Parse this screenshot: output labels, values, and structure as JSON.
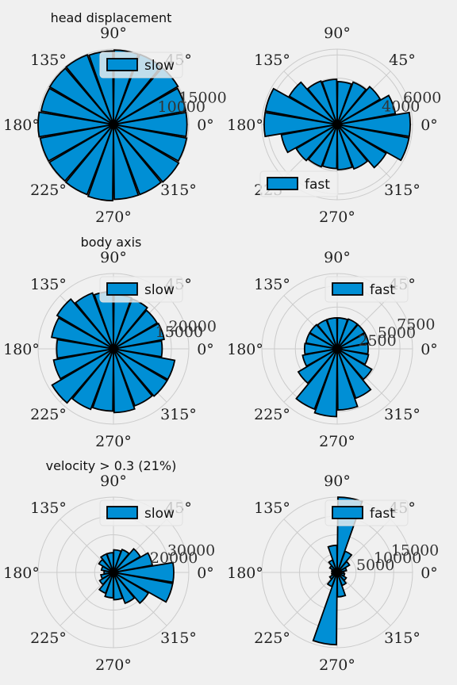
{
  "figure": {
    "background": "#f0f0f0"
  },
  "style": {
    "bar_fill": "#008fd5",
    "bar_edge": "#000000",
    "grid_color": "#cbcbcb",
    "legend_bg": "#f0f0f0"
  },
  "chart_data": [
    {
      "type": "polar-bar",
      "title": "head displacement",
      "legend": {
        "label": "slow",
        "placement": "top-center"
      },
      "angle_ticks": [
        "0°",
        "45°",
        "90°",
        "135°",
        "180°",
        "225°",
        "270°",
        "315°"
      ],
      "radial_ticks": [
        {
          "value": 5000,
          "label": ""
        },
        {
          "value": 10000,
          "label": "10000"
        },
        {
          "value": 15000,
          "label": "15000"
        }
      ],
      "rmax": 16400,
      "bins_deg": [
        0,
        20,
        40,
        60,
        80,
        100,
        120,
        140,
        160,
        180,
        200,
        220,
        240,
        260,
        280,
        300,
        320,
        340
      ],
      "values": [
        16000,
        16000,
        16300,
        16300,
        16200,
        16000,
        16200,
        16100,
        16000,
        16400,
        16200,
        16200,
        16300,
        16600,
        16300,
        16300,
        16500,
        16200
      ]
    },
    {
      "type": "polar-bar",
      "title": "",
      "legend": {
        "label": "fast",
        "placement": "bottom-left"
      },
      "angle_ticks": [
        "0°",
        "45°",
        "90°",
        "135°",
        "180°",
        "225°",
        "270°",
        "315°"
      ],
      "radial_ticks": [
        {
          "value": 2000,
          "label": ""
        },
        {
          "value": 4000,
          "label": "4000"
        },
        {
          "value": 6000,
          "label": "6000"
        }
      ],
      "rmax": 6500,
      "bins_deg": [
        0,
        20,
        40,
        60,
        80,
        100,
        120,
        140,
        160,
        180,
        200,
        220,
        240,
        260,
        280,
        300,
        320,
        340
      ],
      "values": [
        6300,
        5100,
        4300,
        3900,
        3700,
        3900,
        4000,
        4800,
        6300,
        6300,
        4900,
        4100,
        3900,
        3800,
        3900,
        4100,
        4900,
        6300
      ]
    },
    {
      "type": "polar-bar",
      "title": "body axis",
      "legend": {
        "label": "slow",
        "placement": "top-center"
      },
      "angle_ticks": [
        "0°",
        "45°",
        "90°",
        "135°",
        "180°",
        "225°",
        "270°",
        "315°"
      ],
      "radial_ticks": [
        {
          "value": 10000,
          "label": ""
        },
        {
          "value": 15000,
          "label": "15000"
        },
        {
          "value": 20000,
          "label": "20000"
        }
      ],
      "rmax": 26000,
      "bins_deg": [
        0,
        20,
        40,
        60,
        80,
        100,
        120,
        140,
        160,
        180,
        200,
        220,
        240,
        260,
        280,
        300,
        320,
        340
      ],
      "values": [
        16800,
        17800,
        17500,
        18400,
        18700,
        19800,
        20600,
        22600,
        21700,
        19600,
        21000,
        24600,
        22300,
        21500,
        22000,
        21000,
        21500,
        21500
      ]
    },
    {
      "type": "polar-bar",
      "title": "",
      "legend": {
        "label": "fast",
        "placement": "top-right"
      },
      "angle_ticks": [
        "0°",
        "45°",
        "90°",
        "135°",
        "180°",
        "225°",
        "270°",
        "315°"
      ],
      "radial_ticks": [
        {
          "value": 2500,
          "label": "2500"
        },
        {
          "value": 5000,
          "label": "5000"
        },
        {
          "value": 7500,
          "label": "7500"
        }
      ],
      "rmax": 9000,
      "bins_deg": [
        0,
        20,
        40,
        60,
        80,
        100,
        120,
        140,
        160,
        180,
        200,
        220,
        240,
        260,
        280,
        300,
        320,
        340
      ],
      "values": [
        3700,
        3800,
        3800,
        3800,
        3700,
        3700,
        3700,
        3800,
        3800,
        3900,
        4200,
        5400,
        7700,
        8100,
        7300,
        6300,
        4800,
        3800
      ]
    },
    {
      "type": "polar-bar",
      "title": "velocity > 0.3 (21%)",
      "legend": {
        "label": "slow",
        "placement": "top-center"
      },
      "angle_ticks": [
        "0°",
        "45°",
        "90°",
        "135°",
        "180°",
        "225°",
        "270°",
        "315°"
      ],
      "radial_ticks": [
        {
          "value": 10000,
          "label": ""
        },
        {
          "value": 20000,
          "label": "20000"
        },
        {
          "value": 30000,
          "label": "30000"
        }
      ],
      "rmax": 40000,
      "bins_deg": [
        0,
        20,
        40,
        60,
        80,
        100,
        120,
        140,
        160,
        180,
        200,
        220,
        240,
        260,
        280,
        300,
        320,
        340
      ],
      "values": [
        32000,
        21000,
        16500,
        13000,
        12000,
        10500,
        10500,
        9000,
        6500,
        5000,
        6800,
        8500,
        11800,
        13500,
        14500,
        17500,
        21500,
        32000
      ]
    },
    {
      "type": "polar-bar",
      "title": "",
      "legend": {
        "label": "fast",
        "placement": "top-right"
      },
      "angle_ticks": [
        "0°",
        "45°",
        "90°",
        "135°",
        "180°",
        "225°",
        "270°",
        "315°"
      ],
      "radial_ticks": [
        {
          "value": 5000,
          "label": "5000"
        },
        {
          "value": 10000,
          "label": "10000"
        },
        {
          "value": 15000,
          "label": "15000"
        }
      ],
      "rmax": 20000,
      "bins_deg": [
        0,
        20,
        40,
        60,
        80,
        100,
        120,
        140,
        160,
        180,
        200,
        220,
        240,
        260,
        280,
        300,
        320,
        340
      ],
      "values": [
        1800,
        2500,
        3800,
        6000,
        20000,
        7200,
        3500,
        2300,
        1500,
        1300,
        1500,
        2300,
        4000,
        19200,
        6500,
        3700,
        2800,
        2000
      ]
    }
  ]
}
